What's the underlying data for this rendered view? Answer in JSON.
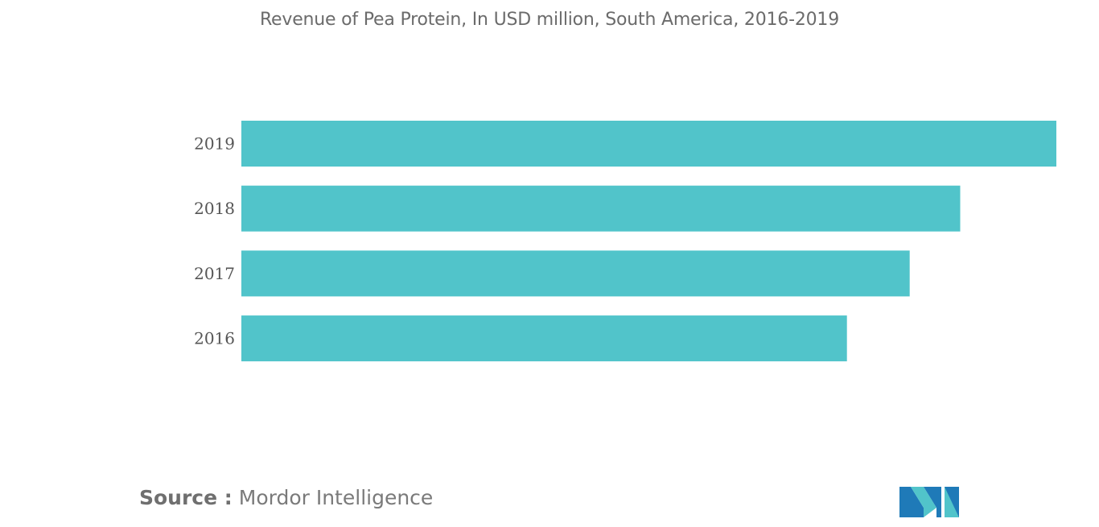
{
  "chart_data": {
    "type": "bar",
    "orientation": "horizontal",
    "title": "Revenue of Pea Protein, In USD million, South America, 2016-2019",
    "categories": [
      "2019",
      "2018",
      "2017",
      "2016"
    ],
    "values": [
      100,
      88.2,
      82,
      74.3
    ],
    "xlabel": "",
    "ylabel": "",
    "xlim": [
      0,
      100
    ],
    "bar_color": "#51c4ca",
    "grid": false,
    "legend": "none"
  },
  "source": {
    "prefix": "Source :",
    "name": "Mordor Intelligence"
  },
  "logo": {
    "icon": "mordor-intelligence-logo",
    "colors": [
      "#1f7ab8",
      "#51c4ca"
    ]
  }
}
